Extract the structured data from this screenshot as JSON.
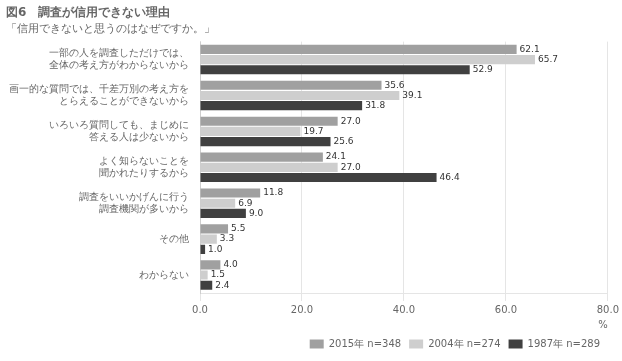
{
  "chart_data": {
    "type": "bar",
    "orientation": "horizontal",
    "title": "図6　調査が信用できない理由",
    "subtitle": "「信用できないと思うのはなぜですか。」",
    "xlabel": "%",
    "categories": [
      "一部の人を調査しただけでは、\n全体の考え方がわからないから",
      "画一的な質問では、千差万別の考え方を\nとらえることができないから",
      "いろいろ質問しても、まじめに\n答える人は少ないから",
      "よく知らないことを\n聞かれたりするから",
      "調査をいいかげんに行う\n調査機関が多いから",
      "その他",
      "わからない"
    ],
    "series": [
      {
        "name": "2015年 n=348",
        "color": "#a0a0a0",
        "values": [
          62.1,
          35.6,
          27.0,
          24.1,
          11.8,
          5.5,
          4.0
        ],
        "value_labels": [
          "62.1",
          "35.6",
          "27.0",
          "24.1",
          "11.8",
          "5.5",
          "4.0"
        ]
      },
      {
        "name": "2004年 n=274",
        "color": "#cecece",
        "values": [
          65.7,
          39.1,
          19.7,
          27.0,
          6.9,
          3.3,
          1.5
        ],
        "value_labels": [
          "65.7",
          "39.1",
          "19.7",
          "27.0",
          "6.9",
          "3.3",
          "1.5"
        ]
      },
      {
        "name": "1987年 n=289",
        "color": "#404040",
        "values": [
          52.9,
          31.8,
          25.6,
          46.4,
          9.0,
          1.0,
          2.4
        ],
        "value_labels": [
          "52.9",
          "31.8",
          "25.6",
          "46.4",
          "9.0",
          "1.0",
          "2.4"
        ]
      }
    ],
    "xlim": [
      0,
      80
    ],
    "xticks": [
      {
        "value": 0,
        "label": "0.0"
      },
      {
        "value": 20,
        "label": "20.0"
      },
      {
        "value": 40,
        "label": "40.0"
      },
      {
        "value": 60,
        "label": "60.0"
      },
      {
        "value": 80,
        "label": "80.0"
      }
    ],
    "grid": true,
    "data_labels": true,
    "legend": "lower right"
  }
}
